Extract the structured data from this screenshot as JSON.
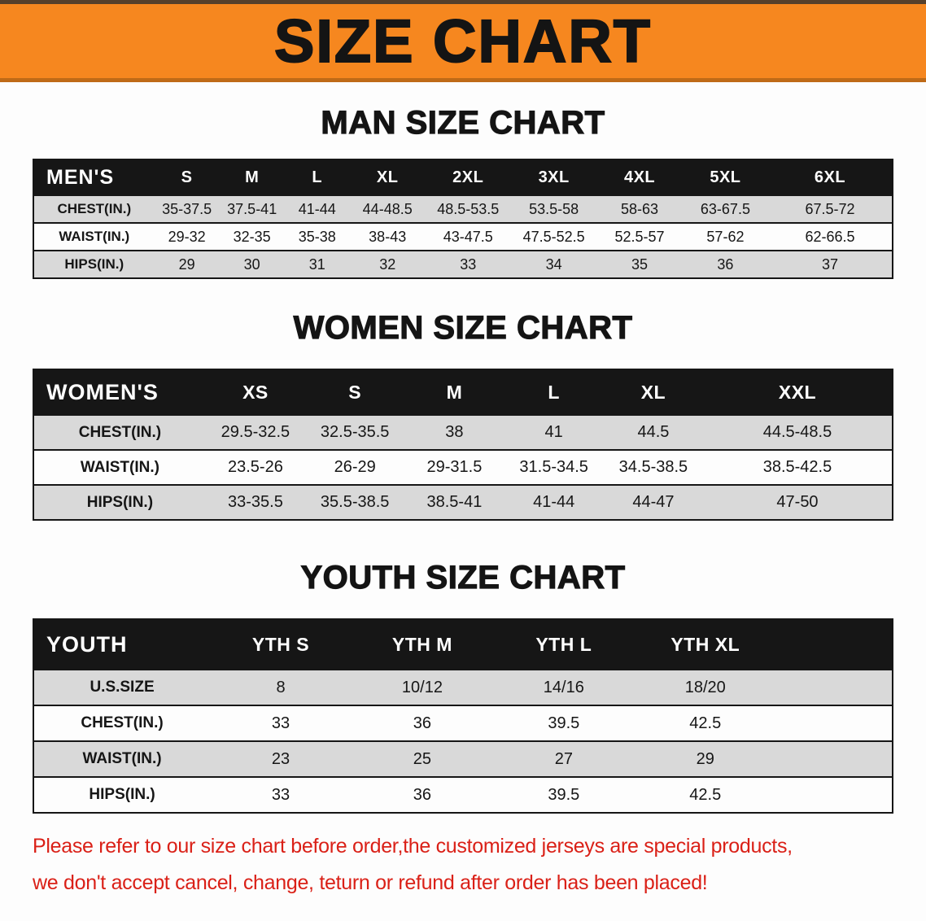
{
  "banner": {
    "title": "SIZE CHART"
  },
  "colors": {
    "banner_orange": "#f6871f",
    "table_header_black": "#161616",
    "row_shade_gray": "#d9d9d9",
    "note_red": "#da2017"
  },
  "sections": [
    {
      "heading": "MAN SIZE CHART",
      "table": {
        "header": [
          "MEN'S",
          "S",
          "M",
          "L",
          "XL",
          "2XL",
          "3XL",
          "4XL",
          "5XL",
          "6XL"
        ],
        "rows": [
          {
            "label": "CHEST(IN.)",
            "values": [
              "35-37.5",
              "37.5-41",
              "41-44",
              "44-48.5",
              "48.5-53.5",
              "53.5-58",
              "58-63",
              "63-67.5",
              "67.5-72"
            ]
          },
          {
            "label": "WAIST(IN.)",
            "values": [
              "29-32",
              "32-35",
              "35-38",
              "38-43",
              "43-47.5",
              "47.5-52.5",
              "52.5-57",
              "57-62",
              "62-66.5"
            ]
          },
          {
            "label": "HIPS(IN.)",
            "values": [
              "29",
              "30",
              "31",
              "32",
              "33",
              "34",
              "35",
              "36",
              "37"
            ]
          }
        ]
      }
    },
    {
      "heading": "WOMEN SIZE CHART",
      "table": {
        "header": [
          "WOMEN'S",
          "XS",
          "S",
          "M",
          "L",
          "XL",
          "XXL"
        ],
        "rows": [
          {
            "label": "CHEST(IN.)",
            "values": [
              "29.5-32.5",
              "32.5-35.5",
              "38",
              "41",
              "44.5",
              "44.5-48.5"
            ]
          },
          {
            "label": "WAIST(IN.)",
            "values": [
              "23.5-26",
              "26-29",
              "29-31.5",
              "31.5-34.5",
              "34.5-38.5",
              "38.5-42.5"
            ]
          },
          {
            "label": "HIPS(IN.)",
            "values": [
              "33-35.5",
              "35.5-38.5",
              "38.5-41",
              "41-44",
              "44-47",
              "47-50"
            ]
          }
        ]
      }
    },
    {
      "heading": "YOUTH SIZE CHART",
      "table": {
        "header": [
          "YOUTH",
          "YTH S",
          "YTH M",
          "YTH L",
          "YTH XL"
        ],
        "rows": [
          {
            "label": "U.S.SIZE",
            "values": [
              "8",
              "10/12",
              "14/16",
              "18/20"
            ]
          },
          {
            "label": "CHEST(IN.)",
            "values": [
              "33",
              "36",
              "39.5",
              "42.5"
            ]
          },
          {
            "label": "WAIST(IN.)",
            "values": [
              "23",
              "25",
              "27",
              "29"
            ]
          },
          {
            "label": "HIPS(IN.)",
            "values": [
              "33",
              "36",
              "39.5",
              "42.5"
            ]
          }
        ]
      }
    }
  ],
  "note": {
    "lines": [
      "Please refer to our size chart before order,the customized jerseys are special products,",
      "we don't accept cancel, change, teturn or refund after order has been placed!"
    ]
  }
}
